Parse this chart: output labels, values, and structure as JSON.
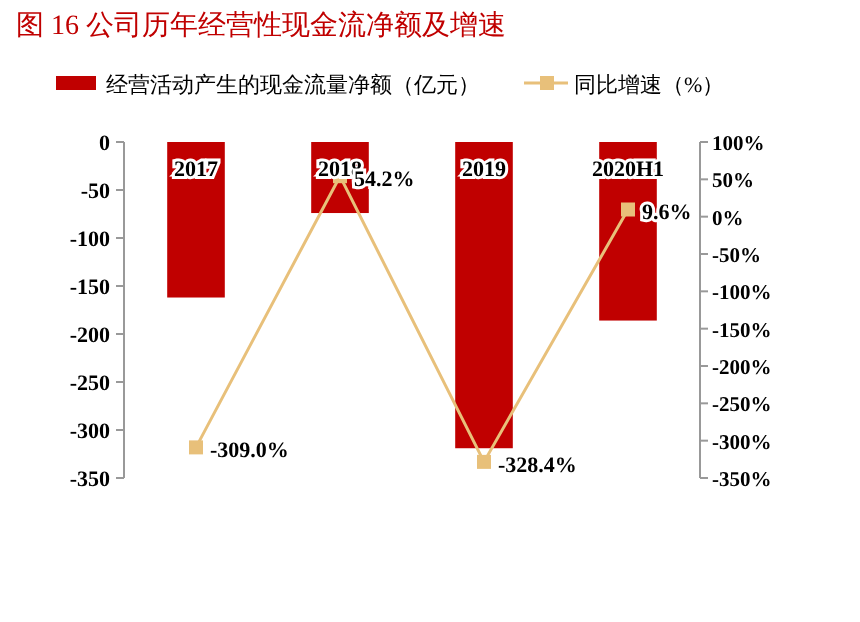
{
  "chart_data": {
    "type": "bar",
    "title": "图 16   公司历年经营性现金流净额及增速",
    "categories": [
      "2017",
      "2018",
      "2019",
      "2020H1"
    ],
    "series": [
      {
        "name": "经营活动产生的现金流量净额（亿元）",
        "color": "#c00000",
        "values": [
          -162,
          -74,
          -319,
          -186
        ]
      },
      {
        "name": "同比增速（%）",
        "type": "line",
        "axis": "y2",
        "color": "#e8c07a",
        "marker": "square",
        "values": [
          -309.0,
          54.2,
          -328.4,
          9.6
        ],
        "value_labels": [
          "-309.0%",
          "54.2%",
          "-328.4%",
          "9.6%"
        ]
      }
    ],
    "ylim": [
      -350,
      0
    ],
    "yticks": [
      0,
      -50,
      -100,
      -150,
      -200,
      -250,
      -300,
      -350
    ],
    "y2lim": [
      -350,
      100
    ],
    "y2ticks": [
      {
        "value": 100,
        "label": "100%"
      },
      {
        "value": 50,
        "label": "50%"
      },
      {
        "value": 0,
        "label": "0%"
      },
      {
        "value": -50,
        "label": "-50%"
      },
      {
        "value": -100,
        "label": "-100%"
      },
      {
        "value": -150,
        "label": "-150%"
      },
      {
        "value": -200,
        "label": "-200%"
      },
      {
        "value": -250,
        "label": "-250%"
      },
      {
        "value": -300,
        "label": "-300%"
      },
      {
        "value": -350,
        "label": "-350%"
      }
    ],
    "legend": "top",
    "grid": false
  }
}
